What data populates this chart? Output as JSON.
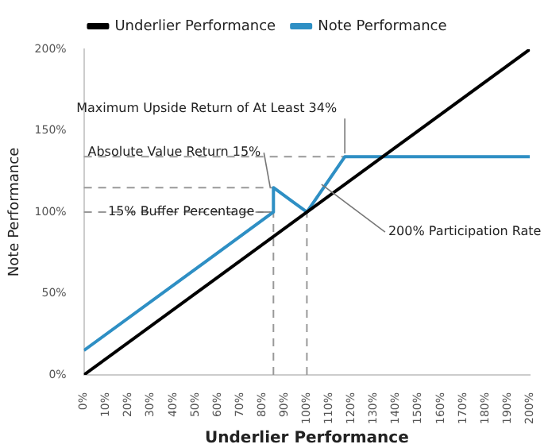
{
  "chart_data": {
    "type": "line",
    "xlabel": "Underlier Performance",
    "ylabel": "Note Performance",
    "legend": "top",
    "grid": false,
    "marker": "none",
    "line_style": "solid",
    "xlim": [
      0,
      200
    ],
    "ylim": [
      0,
      200
    ],
    "xticks": [
      {
        "value": 0,
        "label": "0%"
      },
      {
        "value": 10,
        "label": "10%"
      },
      {
        "value": 20,
        "label": "20%"
      },
      {
        "value": 30,
        "label": "30%"
      },
      {
        "value": 40,
        "label": "40%"
      },
      {
        "value": 50,
        "label": "50%"
      },
      {
        "value": 60,
        "label": "60%"
      },
      {
        "value": 70,
        "label": "70%"
      },
      {
        "value": 80,
        "label": "80%"
      },
      {
        "value": 90,
        "label": "90%"
      },
      {
        "value": 100,
        "label": "100%"
      },
      {
        "value": 110,
        "label": "110%"
      },
      {
        "value": 120,
        "label": "120%"
      },
      {
        "value": 130,
        "label": "130%"
      },
      {
        "value": 140,
        "label": "140%"
      },
      {
        "value": 150,
        "label": "150%"
      },
      {
        "value": 160,
        "label": "160%"
      },
      {
        "value": 170,
        "label": "170%"
      },
      {
        "value": 180,
        "label": "180%"
      },
      {
        "value": 190,
        "label": "190%"
      },
      {
        "value": 200,
        "label": "200%"
      }
    ],
    "yticks": [
      {
        "value": 0,
        "label": "0%"
      },
      {
        "value": 50,
        "label": "50%"
      },
      {
        "value": 100,
        "label": "100%"
      },
      {
        "value": 150,
        "label": "150%"
      },
      {
        "value": 200,
        "label": "200%"
      }
    ],
    "series": [
      {
        "name": "Underlier Performance",
        "color": "#000000",
        "x": [
          0,
          200
        ],
        "values": [
          0,
          200
        ]
      },
      {
        "name": "Note Performance",
        "color": "#2e8fc4",
        "x": [
          0,
          85,
          85,
          100,
          117,
          200
        ],
        "values": [
          15,
          100,
          115,
          100,
          134,
          134
        ]
      }
    ],
    "ref_lines": [
      {
        "axis": "y",
        "value": 134,
        "color": "#999999",
        "line_style": "dashed"
      },
      {
        "axis": "y",
        "value": 115,
        "color": "#999999",
        "line_style": "dashed"
      },
      {
        "axis": "y",
        "value": 100,
        "color": "#999999",
        "line_style": "dashed"
      },
      {
        "axis": "x",
        "value": 85,
        "color": "#999999",
        "line_style": "dashed"
      },
      {
        "axis": "x",
        "value": 100,
        "color": "#999999",
        "line_style": "dashed"
      }
    ],
    "annotations": [
      {
        "text": "Maximum Upside Return of At Least 34%",
        "x": 117,
        "y": 134
      },
      {
        "text": "Absolute Value Return 15%",
        "x": 85,
        "y": 115
      },
      {
        "text": "15% Buffer Percentage",
        "x": 85,
        "y": 100
      },
      {
        "text": "200% Participation Rate",
        "x": 108,
        "y": 117
      }
    ]
  }
}
